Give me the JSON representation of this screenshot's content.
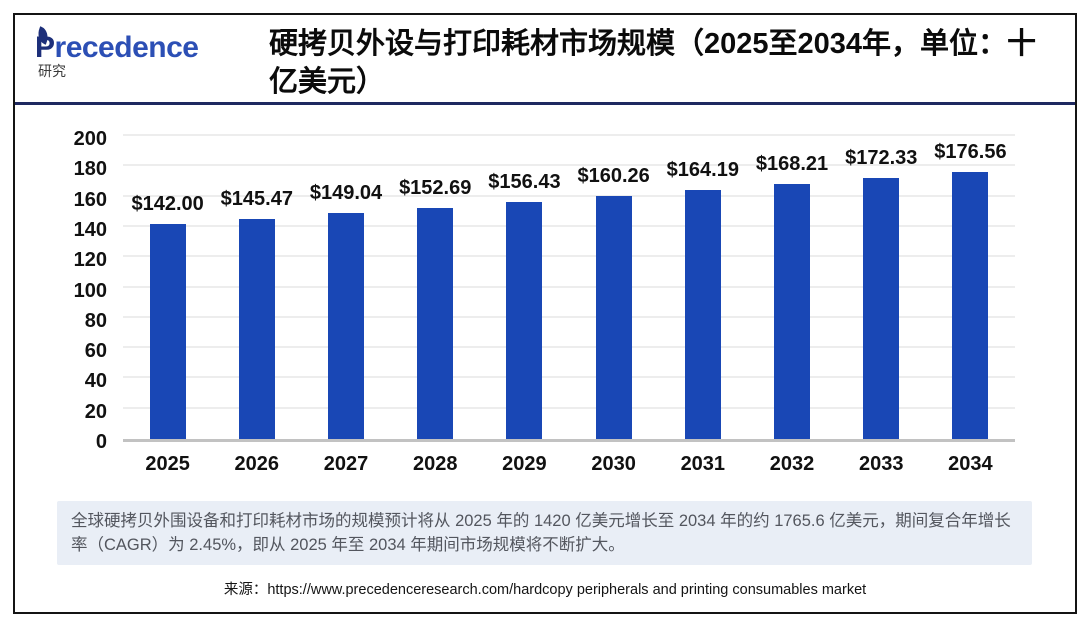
{
  "header": {
    "logo": {
      "brand_p": "P",
      "brand_rest": "recedence",
      "subtitle": "研究"
    },
    "title": "硬拷贝外设与打印耗材市场规模（2025至2034年，单位：十亿美元）"
  },
  "chart_data": {
    "type": "bar",
    "title": "硬拷贝外设与打印耗材市场规模（2025至2034年，单位：十亿美元）",
    "categories": [
      "2025",
      "2026",
      "2027",
      "2028",
      "2029",
      "2030",
      "2031",
      "2032",
      "2033",
      "2034"
    ],
    "values": [
      142.0,
      145.47,
      149.04,
      152.69,
      156.43,
      160.26,
      164.19,
      168.21,
      172.33,
      176.56
    ],
    "value_labels": [
      "$142.00",
      "$145.47",
      "$149.04",
      "$152.69",
      "$156.43",
      "$160.26",
      "$164.19",
      "$168.21",
      "$172.33",
      "$176.56"
    ],
    "xlabel": "",
    "ylabel": "",
    "ylim": [
      0,
      200
    ],
    "yticks": [
      0,
      20,
      40,
      60,
      80,
      100,
      120,
      140,
      160,
      180,
      200
    ],
    "grid": true,
    "legend": "none",
    "bar_color": "#1947b5"
  },
  "annotation": {
    "text": "全球硬拷贝外围设备和打印耗材市场的规模预计将从 2025 年的 1420 亿美元增长至 2034 年的约 1765.6 亿美元，期间复合年增长率（CAGR）为 2.45%，即从 2025 年至 2034 年期间市场规模将不断扩大。"
  },
  "source": {
    "label": "来源：",
    "url": "https://www.precedenceresearch.com/hardcopy peripherals and printing consumables market"
  },
  "colors": {
    "bar": "#1947b5",
    "header_rule": "#1e2960",
    "frame_border": "#141414",
    "annotation_bg": "#e9eef6",
    "annotation_text": "#53565e",
    "logo_blue": "#2c4fb5",
    "logo_navy": "#1d2f7a"
  }
}
